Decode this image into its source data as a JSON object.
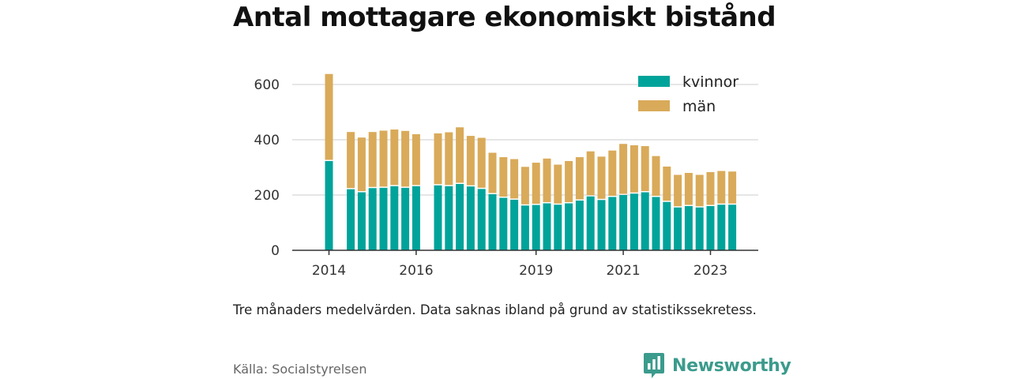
{
  "title": "Antal mottagare ekonomiskt bistånd",
  "note": "Tre månaders medelvärden. Data saknas ibland på grund av statistikssekretess.",
  "source": "Källa: Socialstyrelsen",
  "brand": {
    "name": "Newsworthy",
    "color": "#3b9b8c",
    "icon": "newsworthy-logo-icon"
  },
  "chart_data": {
    "type": "bar",
    "stacked": true,
    "categories": [
      "2014Q3",
      "2014Q4",
      "2015Q1",
      "2015Q2",
      "2015Q3",
      "2015Q4",
      "2016Q1",
      "2016Q2",
      "2016Q3",
      "2016Q4",
      "2017Q1",
      "2017Q2",
      "2017Q3",
      "2017Q4",
      "2018Q1",
      "2018Q2",
      "2018Q3",
      "2018Q4",
      "2019Q1",
      "2019Q2",
      "2019Q3",
      "2019Q4",
      "2020Q1",
      "2020Q2",
      "2020Q3",
      "2020Q4",
      "2021Q1",
      "2021Q2",
      "2021Q3",
      "2021Q4",
      "2022Q1",
      "2022Q2",
      "2022Q3",
      "2022Q4",
      "2023Q1",
      "2023Q2",
      "2023Q3",
      "2023Q4"
    ],
    "series": [
      {
        "name": "kvinnor",
        "color": "#00a39a",
        "values": [
          323,
          null,
          221,
          210,
          225,
          226,
          232,
          226,
          232,
          null,
          235,
          232,
          240,
          231,
          222,
          203,
          190,
          183,
          162,
          164,
          170,
          165,
          170,
          180,
          195,
          182,
          193,
          200,
          205,
          210,
          193,
          175,
          155,
          160,
          155,
          160,
          165,
          165
        ]
      },
      {
        "name": "män",
        "color": "#d9aa59",
        "values": [
          315,
          null,
          207,
          198,
          203,
          207,
          205,
          206,
          188,
          null,
          188,
          195,
          205,
          183,
          185,
          150,
          147,
          147,
          140,
          153,
          162,
          145,
          153,
          157,
          163,
          157,
          168,
          185,
          175,
          167,
          148,
          128,
          118,
          120,
          118,
          123,
          122,
          120
        ]
      }
    ],
    "xticks": [
      "2014",
      "2016",
      "2019",
      "2021",
      "2023"
    ],
    "xtick_categories": [
      "2014Q3",
      "2016Q3",
      "2019Q2",
      "2021Q2",
      "2023Q2"
    ],
    "ylim": [
      0,
      700
    ],
    "yticks": [
      0,
      200,
      400,
      600
    ],
    "grid": true,
    "legend": "top-right"
  }
}
